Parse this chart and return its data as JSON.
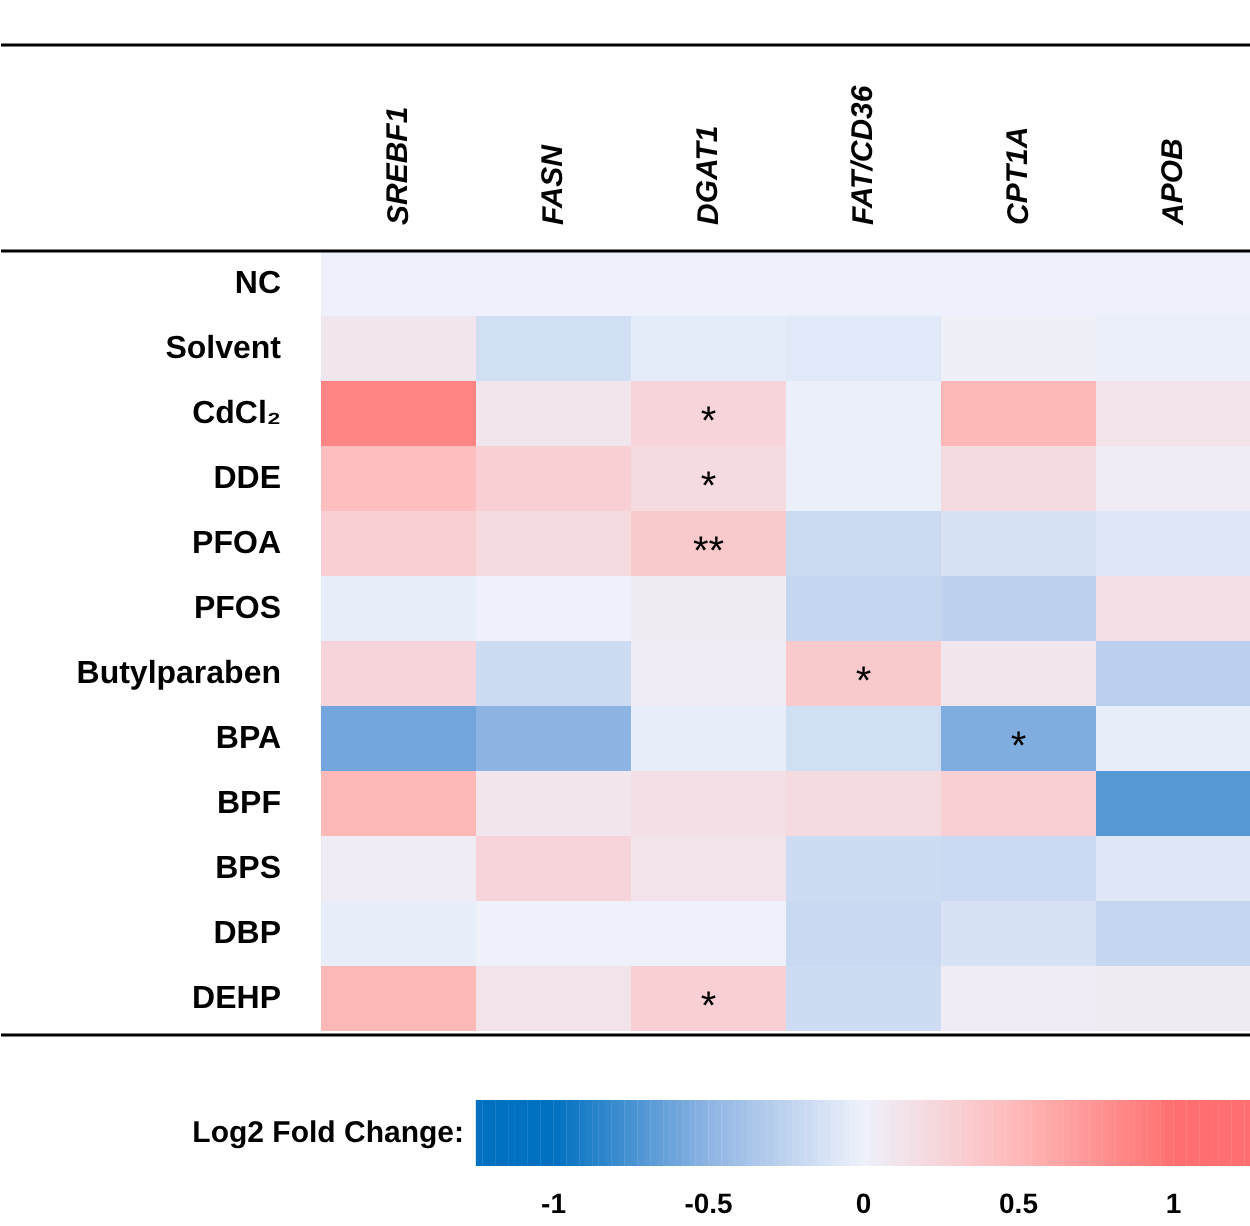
{
  "chart_data": {
    "type": "heatmap",
    "categories": [
      "SREBF1",
      "FASN",
      "DGAT1",
      "FAT/CD36",
      "CPT1A",
      "APOB"
    ],
    "y_categories": [
      "NC",
      "Solvent",
      "CdCl₂",
      "DDE",
      "PFOA",
      "PFOS",
      "Butylparaben",
      "BPA",
      "BPF",
      "BPS",
      "DBP",
      "DEHP"
    ],
    "cells": [
      [
        0,
        0,
        0,
        0,
        0,
        0
      ],
      [
        0.1,
        -0.15,
        -0.05,
        -0.07,
        0.02,
        -0.02
      ],
      [
        0.85,
        0.1,
        0.25,
        -0.02,
        0.5,
        0.12
      ],
      [
        0.45,
        0.3,
        0.2,
        -0.02,
        0.2,
        0.05
      ],
      [
        0.3,
        0.2,
        0.35,
        -0.18,
        -0.12,
        -0.08
      ],
      [
        -0.03,
        0.0,
        0.06,
        -0.22,
        -0.25,
        0.15
      ],
      [
        0.25,
        -0.17,
        0.05,
        0.35,
        0.1,
        -0.27
      ],
      [
        -0.6,
        -0.5,
        -0.03,
        -0.15,
        -0.55,
        -0.03
      ],
      [
        0.5,
        0.1,
        0.15,
        0.2,
        0.3,
        -0.7
      ],
      [
        0.04,
        0.25,
        0.12,
        -0.17,
        -0.19,
        -0.08
      ],
      [
        -0.03,
        0.01,
        0.01,
        -0.2,
        -0.12,
        -0.22
      ],
      [
        0.5,
        0.12,
        0.3,
        -0.17,
        0.04,
        0.06
      ]
    ],
    "cell_labels": [
      [
        null,
        null,
        null,
        null,
        null,
        null
      ],
      [
        null,
        null,
        null,
        null,
        null,
        null
      ],
      [
        null,
        null,
        "*",
        null,
        null,
        null
      ],
      [
        null,
        null,
        "*",
        null,
        null,
        null
      ],
      [
        null,
        null,
        "**",
        null,
        null,
        null
      ],
      [
        null,
        null,
        null,
        null,
        null,
        null
      ],
      [
        null,
        null,
        null,
        "*",
        null,
        null
      ],
      [
        null,
        null,
        null,
        null,
        "*",
        null
      ],
      [
        null,
        null,
        null,
        null,
        null,
        null
      ],
      [
        null,
        null,
        null,
        null,
        null,
        null
      ],
      [
        null,
        null,
        null,
        null,
        null,
        null
      ],
      [
        null,
        null,
        "*",
        null,
        null,
        null
      ]
    ],
    "clabel": "Log2 Fold Change:",
    "clim": [
      -1.25,
      1.25
    ],
    "cticks": [
      -1,
      -0.5,
      0,
      0.5,
      1
    ],
    "colors": [
      "#0070c0",
      "#8eb4e3",
      "#eef1fb",
      "#ffb8b8",
      "#ff6f6f"
    ]
  }
}
